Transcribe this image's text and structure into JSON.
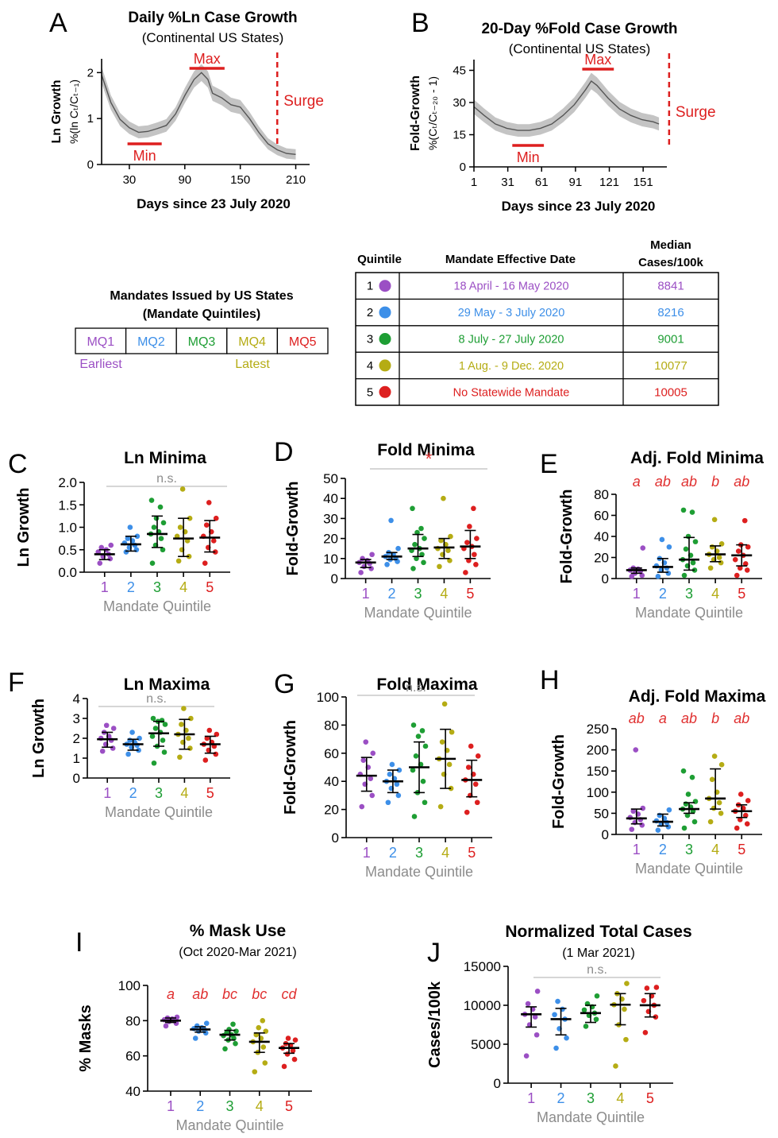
{
  "palette": {
    "q1": "#9b4fc4",
    "q2": "#3d8fe8",
    "q3": "#1e9e34",
    "q4": "#b5ac14",
    "q5": "#dd1f1f",
    "axis_label_gray": "#8c8c8c",
    "sig_red": "#e03030",
    "line_gray": "#555555",
    "band_gray": "#c4c4c4"
  },
  "panel_a": {
    "letter": "A",
    "title": "Daily %Ln Case Growth",
    "subtitle": "(Continental US States)",
    "ylabel": "Ln Growth",
    "ylabel2": "%(ln Cₜ/Cₜ₋₁)",
    "xlabel": "Days since 23 July 2020",
    "max_label": "Max",
    "min_label": "Min",
    "surge_label": "Surge",
    "chart_data": {
      "type": "line",
      "xlim": [
        0,
        225
      ],
      "ylim": [
        0,
        2.3
      ],
      "xticks": [
        "30",
        "90",
        "150",
        "210"
      ],
      "yticks": [
        "0",
        "1",
        "2"
      ],
      "x": [
        0,
        10,
        20,
        30,
        40,
        50,
        60,
        70,
        80,
        90,
        100,
        108,
        115,
        120,
        130,
        140,
        150,
        160,
        170,
        180,
        190,
        200,
        210
      ],
      "y": [
        1.95,
        1.35,
        0.98,
        0.8,
        0.7,
        0.72,
        0.78,
        0.85,
        1.1,
        1.5,
        1.85,
        2.0,
        1.85,
        1.55,
        1.45,
        1.3,
        1.25,
        1.0,
        0.7,
        0.45,
        0.32,
        0.24,
        0.22
      ],
      "min_range": [
        28,
        65
      ],
      "max_range": [
        95,
        133
      ],
      "surge_x": 190
    }
  },
  "panel_b": {
    "letter": "B",
    "title": "20-Day %Fold Case Growth",
    "subtitle": "(Continental US States)",
    "ylabel": "Fold-Growth",
    "ylabel2": "%(Cₜ/Cₜ₋₂₀ - 1)",
    "xlabel": "Days since 23 July 2020",
    "max_label": "Max",
    "min_label": "Min",
    "surge_label": "Surge",
    "chart_data": {
      "type": "line",
      "xlim": [
        1,
        172
      ],
      "ylim": [
        0,
        50
      ],
      "xticks": [
        "1",
        "31",
        "61",
        "91",
        "121",
        "151"
      ],
      "yticks": [
        "0",
        "15",
        "30",
        "45"
      ],
      "x": [
        1,
        10,
        20,
        30,
        40,
        50,
        60,
        70,
        80,
        90,
        100,
        105,
        110,
        120,
        130,
        140,
        150,
        160,
        165
      ],
      "y": [
        28,
        24,
        20,
        18,
        17,
        17,
        18,
        20,
        24,
        29,
        36,
        40,
        38,
        32,
        27,
        24,
        22,
        21,
        20
      ],
      "min_range": [
        35,
        63
      ],
      "max_range": [
        97,
        125
      ],
      "surge_x": 174
    }
  },
  "mq_legend": {
    "title1": "Mandates Issued by US States",
    "title2": "(Mandate Quintiles)",
    "cells": [
      "MQ1",
      "MQ2",
      "MQ3",
      "MQ4",
      "MQ5"
    ],
    "earliest": "Earliest",
    "latest": "Latest"
  },
  "mandate_table": {
    "headers": [
      "Quintile",
      "Mandate Effective Date",
      "Median",
      "Cases/100k"
    ],
    "rows": [
      {
        "q": "1",
        "date": "18 April - 16 May 2020",
        "cases": "8841"
      },
      {
        "q": "2",
        "date": "29 May - 3 July 2020",
        "cases": "8216"
      },
      {
        "q": "3",
        "date": "8 July - 27 July 2020",
        "cases": "9001"
      },
      {
        "q": "4",
        "date": "1 Aug. - 9 Dec. 2020",
        "cases": "10077"
      },
      {
        "q": "5",
        "date": "No Statewide Mandate",
        "cases": "10005"
      }
    ]
  },
  "scatter_xlabel": "Mandate Quintile",
  "scatter_xticks": [
    "1",
    "2",
    "3",
    "4",
    "5"
  ],
  "scatter_panels": [
    {
      "letter": "C",
      "title": "Ln Minima",
      "subtitle": "",
      "ylabel": "Ln Growth",
      "yticks": [
        "0.0",
        "0.5",
        "1.0",
        "1.5",
        "2.0"
      ],
      "ylim": [
        0,
        2.0
      ],
      "sig": "n.s.",
      "sig_letters": [],
      "medians": [
        0.4,
        0.62,
        0.85,
        0.75,
        0.77
      ],
      "err": [
        [
          0.28,
          0.5
        ],
        [
          0.47,
          0.8
        ],
        [
          0.55,
          1.25
        ],
        [
          0.35,
          1.2
        ],
        [
          0.45,
          1.15
        ]
      ],
      "points": [
        [
          0.2,
          0.3,
          0.35,
          0.4,
          0.45,
          0.5,
          0.55,
          0.6
        ],
        [
          0.45,
          0.5,
          0.55,
          0.6,
          0.65,
          0.7,
          0.75,
          0.8,
          1.0
        ],
        [
          0.2,
          0.5,
          0.6,
          0.75,
          0.85,
          0.9,
          1.0,
          1.1,
          1.2,
          1.45,
          1.6
        ],
        [
          0.25,
          0.35,
          0.5,
          0.7,
          0.8,
          0.9,
          1.0,
          1.2,
          1.85
        ],
        [
          0.2,
          0.45,
          0.55,
          0.7,
          0.8,
          0.9,
          1.05,
          1.2,
          1.55
        ]
      ]
    },
    {
      "letter": "D",
      "title": "Fold Minima",
      "subtitle": "",
      "ylabel": "Fold-Growth",
      "yticks": [
        "0",
        "10",
        "20",
        "30",
        "40",
        "50"
      ],
      "ylim": [
        0,
        50
      ],
      "sig": "*",
      "sig_letters": [],
      "medians": [
        8,
        11,
        15,
        15.5,
        16
      ],
      "err": [
        [
          5.5,
          9.5
        ],
        [
          9.5,
          13
        ],
        [
          11,
          22
        ],
        [
          10,
          20
        ],
        [
          10,
          24
        ]
      ],
      "points": [
        [
          3,
          5,
          6,
          7.5,
          8,
          9,
          10,
          12
        ],
        [
          7,
          8.5,
          9.5,
          10,
          11,
          12,
          13,
          15,
          29
        ],
        [
          5,
          8,
          10,
          12,
          14,
          15,
          17,
          20,
          23,
          25,
          35
        ],
        [
          6,
          9,
          12,
          14,
          15,
          17,
          19,
          21,
          40
        ],
        [
          3,
          7,
          9,
          12,
          15,
          16,
          18,
          20,
          26,
          35
        ]
      ]
    },
    {
      "letter": "E",
      "title": "Adj. Fold Minima",
      "subtitle": "",
      "ylabel": "Fold-Growth",
      "yticks": [
        "0",
        "20",
        "40",
        "60",
        "80"
      ],
      "ylim": [
        0,
        80
      ],
      "sig": "",
      "sig_letters": [
        "a",
        "ab",
        "ab",
        "b",
        "ab"
      ],
      "medians": [
        8,
        11,
        18,
        23,
        22
      ],
      "err": [
        [
          5,
          10
        ],
        [
          6,
          19
        ],
        [
          8,
          39
        ],
        [
          16,
          31
        ],
        [
          12,
          32
        ]
      ],
      "points": [
        [
          2,
          3,
          5,
          7,
          8,
          9,
          10,
          29
        ],
        [
          2,
          5,
          8,
          10,
          12,
          15,
          19,
          30,
          37
        ],
        [
          3,
          8,
          12,
          15,
          18,
          22,
          28,
          35,
          40,
          63,
          65
        ],
        [
          10,
          15,
          18,
          20,
          23,
          26,
          30,
          33,
          56
        ],
        [
          3,
          8,
          10,
          14,
          18,
          22,
          26,
          30,
          32,
          55
        ]
      ]
    },
    {
      "letter": "F",
      "title": "Ln Maxima",
      "subtitle": "",
      "ylabel": "Ln Growth",
      "yticks": [
        "0",
        "1",
        "2",
        "3",
        "4"
      ],
      "ylim": [
        0,
        4
      ],
      "sig": "n.s.",
      "sig_letters": [],
      "medians": [
        1.95,
        1.7,
        2.25,
        2.2,
        1.7
      ],
      "err": [
        [
          1.55,
          2.3
        ],
        [
          1.4,
          1.95
        ],
        [
          1.6,
          2.85
        ],
        [
          1.45,
          2.95
        ],
        [
          1.25,
          2.1
        ]
      ],
      "points": [
        [
          1.35,
          1.5,
          1.7,
          1.9,
          2.0,
          2.1,
          2.3,
          2.5,
          2.65
        ],
        [
          1.2,
          1.4,
          1.55,
          1.65,
          1.7,
          1.8,
          1.9,
          2.0,
          2.3
        ],
        [
          0.75,
          1.3,
          1.6,
          1.9,
          2.1,
          2.3,
          2.5,
          2.7,
          2.85,
          2.9,
          3.0
        ],
        [
          1.05,
          1.5,
          1.8,
          2.0,
          2.2,
          2.4,
          2.7,
          3.0,
          3.5
        ],
        [
          0.9,
          1.2,
          1.4,
          1.6,
          1.7,
          1.8,
          2.0,
          2.2,
          2.4
        ]
      ]
    },
    {
      "letter": "G",
      "title": "Fold Maxima",
      "subtitle": "",
      "ylabel": "Fold-Growth",
      "yticks": [
        "0",
        "20",
        "40",
        "60",
        "80",
        "100"
      ],
      "ylim": [
        0,
        100
      ],
      "sig": "n.s.",
      "sig_letters": [],
      "medians": [
        44,
        40,
        50,
        56,
        41
      ],
      "err": [
        [
          33,
          57
        ],
        [
          32,
          48
        ],
        [
          32,
          68
        ],
        [
          35,
          77
        ],
        [
          29,
          55
        ]
      ],
      "points": [
        [
          22,
          30,
          38,
          42,
          45,
          50,
          55,
          60,
          68
        ],
        [
          25,
          30,
          35,
          38,
          40,
          42,
          45,
          48,
          52
        ],
        [
          15,
          25,
          32,
          40,
          48,
          52,
          58,
          65,
          72,
          76,
          80
        ],
        [
          22,
          35,
          45,
          52,
          56,
          62,
          68,
          75,
          95
        ],
        [
          18,
          25,
          30,
          38,
          41,
          45,
          50,
          58,
          65
        ]
      ]
    },
    {
      "letter": "H",
      "title": "Adj. Fold Maxima",
      "subtitle": "",
      "ylabel": "Fold-Growth",
      "yticks": [
        "0",
        "50",
        "100",
        "150",
        "200",
        "250"
      ],
      "ylim": [
        0,
        250
      ],
      "sig": "",
      "sig_letters": [
        "ab",
        "a",
        "ab",
        "b",
        "ab"
      ],
      "medians": [
        38,
        30,
        60,
        85,
        55
      ],
      "err": [
        [
          25,
          60
        ],
        [
          20,
          48
        ],
        [
          50,
          75
        ],
        [
          60,
          155
        ],
        [
          40,
          70
        ]
      ],
      "points": [
        [
          12,
          22,
          28,
          35,
          40,
          48,
          55,
          62,
          200
        ],
        [
          10,
          18,
          24,
          28,
          32,
          38,
          45,
          58
        ],
        [
          15,
          30,
          45,
          55,
          60,
          65,
          72,
          78,
          95,
          135,
          150
        ],
        [
          30,
          50,
          62,
          75,
          85,
          100,
          130,
          165,
          185
        ],
        [
          15,
          25,
          35,
          45,
          55,
          62,
          70,
          80,
          95
        ]
      ]
    },
    {
      "letter": "I",
      "title": "% Mask Use",
      "subtitle": "(Oct 2020-Mar 2021)",
      "ylabel": "% Masks",
      "yticks": [
        "40",
        "60",
        "80",
        "100"
      ],
      "ylim": [
        40,
        100
      ],
      "sig": "",
      "sig_letters": [
        "a",
        "ab",
        "bc",
        "bc",
        "cd"
      ],
      "medians": [
        80,
        75,
        72,
        68,
        64.5
      ],
      "err": [
        [
          79,
          81.5
        ],
        [
          73.5,
          76.5
        ],
        [
          69,
          74.5
        ],
        [
          62,
          73
        ],
        [
          61.5,
          67
        ]
      ],
      "points": [
        [
          77,
          78.5,
          79.5,
          80,
          80.5,
          81,
          81.5,
          82
        ],
        [
          70,
          73,
          74,
          75,
          75.5,
          76,
          77,
          78.5
        ],
        [
          64,
          67,
          69,
          70,
          71.5,
          72,
          73,
          74,
          75,
          78
        ],
        [
          51,
          56,
          62,
          65,
          68,
          70,
          72,
          74,
          76,
          80
        ],
        [
          54,
          58,
          61,
          63,
          64.5,
          66,
          67,
          69,
          70
        ]
      ]
    },
    {
      "letter": "J",
      "title": "Normalized Total Cases",
      "subtitle": "(1 Mar 2021)",
      "ylabel": "Cases/100k",
      "yticks": [
        "0",
        "5000",
        "10000",
        "15000"
      ],
      "ylim": [
        0,
        15000
      ],
      "sig": "n.s.",
      "sig_letters": [],
      "medians": [
        8841,
        8216,
        9001,
        10077,
        10005
      ],
      "err": [
        [
          7200,
          9800
        ],
        [
          6200,
          9600
        ],
        [
          7800,
          10000
        ],
        [
          7500,
          11500
        ],
        [
          8500,
          11500
        ]
      ],
      "points": [
        [
          3500,
          6200,
          7500,
          8500,
          8841,
          9500,
          10200,
          11800
        ],
        [
          4500,
          5800,
          7000,
          8216,
          8800,
          9500,
          10500
        ],
        [
          7300,
          8200,
          8700,
          9001,
          9400,
          9800,
          10200,
          11200
        ],
        [
          2200,
          5600,
          7500,
          9500,
          10077,
          10800,
          11500,
          12800
        ],
        [
          6500,
          8500,
          9200,
          10005,
          10600,
          11200,
          12200,
          12300
        ]
      ]
    }
  ]
}
